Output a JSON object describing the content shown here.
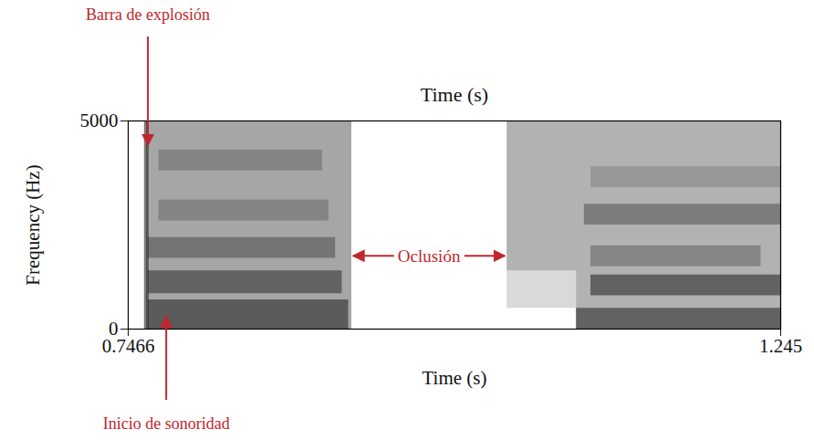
{
  "chart_data": {
    "type": "spectrogram",
    "xlabel": "Time (s)",
    "xlabel_top": "Time (s)",
    "ylabel": "Frequency (Hz)",
    "xlim": [
      0.7466,
      1.245
    ],
    "xticks": [
      0.7466,
      1.245
    ],
    "ylim": [
      0,
      5000
    ],
    "yticks": [
      0,
      5000
    ],
    "color": "#000000",
    "cells": [
      {
        "t0": 0.7605,
        "t1": 0.9174,
        "f0": 0,
        "f1": 5000,
        "intensity": 0.35
      },
      {
        "t0": 0.759,
        "t1": 0.7625,
        "f0": 0,
        "f1": 5000,
        "intensity": 0.5
      },
      {
        "t0": 0.762,
        "t1": 0.915,
        "f0": 0,
        "f1": 700,
        "intensity": 0.45
      },
      {
        "t0": 0.762,
        "t1": 0.91,
        "f0": 850,
        "f1": 1400,
        "intensity": 0.4
      },
      {
        "t0": 0.762,
        "t1": 0.905,
        "f0": 1700,
        "f1": 2200,
        "intensity": 0.3
      },
      {
        "t0": 0.77,
        "t1": 0.9,
        "f0": 2600,
        "f1": 3100,
        "intensity": 0.2
      },
      {
        "t0": 0.77,
        "t1": 0.895,
        "f0": 3800,
        "f1": 4300,
        "intensity": 0.2
      },
      {
        "t0": 1.036,
        "t1": 1.089,
        "f0": 1400,
        "f1": 5000,
        "intensity": 0.3
      },
      {
        "t0": 1.036,
        "t1": 1.089,
        "f0": 500,
        "f1": 1400,
        "intensity": 0.15
      },
      {
        "t0": 1.089,
        "t1": 1.245,
        "f0": 0,
        "f1": 5000,
        "intensity": 0.3
      },
      {
        "t0": 1.089,
        "t1": 1.245,
        "f0": 0,
        "f1": 500,
        "intensity": 0.45
      },
      {
        "t0": 1.1,
        "t1": 1.245,
        "f0": 800,
        "f1": 1300,
        "intensity": 0.45
      },
      {
        "t0": 1.1,
        "t1": 1.23,
        "f0": 1500,
        "f1": 2000,
        "intensity": 0.25
      },
      {
        "t0": 1.095,
        "t1": 1.245,
        "f0": 2500,
        "f1": 3000,
        "intensity": 0.3
      },
      {
        "t0": 1.1,
        "t1": 1.245,
        "f0": 3400,
        "f1": 3900,
        "intensity": 0.15
      }
    ],
    "annotations": [
      {
        "text": "Barra de explosión",
        "x": 0.762,
        "y": 4400,
        "color": "#c0272d"
      },
      {
        "text": "Oclusión",
        "x": [
          0.9174,
          1.036
        ],
        "y": 1750,
        "color": "#c0272d"
      },
      {
        "text": "Inicio de sonoridad",
        "x": 0.776,
        "y": 300,
        "color": "#c0272d"
      }
    ]
  }
}
